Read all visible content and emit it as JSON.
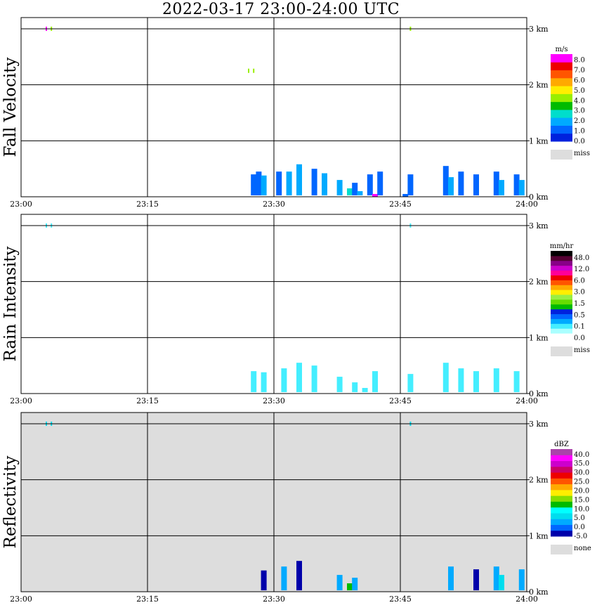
{
  "title": "2022-03-17   23:00-24:00 UTC",
  "x_ticks": [
    "23:00",
    "23:15",
    "23:30",
    "23:45",
    "24:00"
  ],
  "y_ticks": [
    "0 km",
    "1 km",
    "2 km",
    "3 km"
  ],
  "panels": [
    {
      "id": "fall-velocity",
      "ylabel": "Fall Velocity",
      "background": "#ffffff",
      "colorbar": {
        "unit": "m/s",
        "colors": [
          "#0022dd",
          "#0066ff",
          "#00aaff",
          "#00ddcc",
          "#00bb00",
          "#99ee00",
          "#ffee00",
          "#ffaa00",
          "#ff5500",
          "#ee0000",
          "#ff00ff"
        ],
        "labels": [
          "0.0",
          "1.0",
          "2.0",
          "3.0",
          "4.0",
          "5.0",
          "6.0",
          "7.0",
          "8.0"
        ],
        "miss_label": "miss",
        "miss_color": "#dddddd"
      }
    },
    {
      "id": "rain-intensity",
      "ylabel": "Rain Intensity",
      "background": "#ffffff",
      "colorbar": {
        "unit": "mm/hr",
        "colors": [
          "#ffffff",
          "#aaffff",
          "#44eeff",
          "#00aaff",
          "#0066ff",
          "#0022dd",
          "#00bb00",
          "#66dd00",
          "#99ee44",
          "#ffee00",
          "#ffaa00",
          "#ff5500",
          "#ee0000",
          "#ff0099",
          "#cc00cc",
          "#880088",
          "#550033",
          "#000000"
        ],
        "labels": [
          "0.0",
          "0.1",
          "0.5",
          "1.5",
          "3.0",
          "6.0",
          "12.0",
          "48.0"
        ],
        "miss_label": "miss",
        "miss_color": "#dddddd"
      }
    },
    {
      "id": "reflectivity",
      "ylabel": "Reflectivity",
      "background": "#dddddd",
      "colorbar": {
        "unit": "dBZ",
        "colors": [
          "#0000aa",
          "#0066ff",
          "#00aaff",
          "#00ddee",
          "#00ffff",
          "#00bb00",
          "#88dd00",
          "#ffee00",
          "#ffaa00",
          "#ff5500",
          "#ee0000",
          "#cc0066",
          "#cc00cc",
          "#ff00ff",
          "#aa44aa"
        ],
        "labels": [
          "-5.0",
          "0.0",
          "5.0",
          "10.0",
          "15.0",
          "20.0",
          "25.0",
          "30.0",
          "35.0",
          "40.0"
        ],
        "miss_label": "none",
        "miss_color": "#dddddd"
      }
    }
  ],
  "chart_data": [
    {
      "type": "heatmap",
      "title": "2022-03-17   23:00-24:00 UTC",
      "ylabel": "Fall Velocity",
      "xlabel": "",
      "x_range": [
        "23:00",
        "24:00"
      ],
      "y_range_km": [
        0,
        3.2
      ],
      "unit": "m/s",
      "cells": [
        {
          "t": 23.05,
          "h": 3.0,
          "v": 8.0
        },
        {
          "t": 23.06,
          "h": 3.0,
          "v": 4.0
        },
        {
          "t": 23.45,
          "h": 2.25,
          "v": 4.0
        },
        {
          "t": 23.46,
          "h": 2.25,
          "v": 4.0
        },
        {
          "t": 23.77,
          "h": 3.0,
          "v": 4.0
        },
        {
          "t": 23.46,
          "h": 0.4,
          "v": 1.0
        },
        {
          "t": 23.47,
          "h": 0.45,
          "v": 1.0
        },
        {
          "t": 23.48,
          "h": 0.38,
          "v": 1.5
        },
        {
          "t": 23.51,
          "h": 0.45,
          "v": 1.0
        },
        {
          "t": 23.53,
          "h": 0.45,
          "v": 1.5
        },
        {
          "t": 23.55,
          "h": 0.58,
          "v": 1.2
        },
        {
          "t": 23.58,
          "h": 0.5,
          "v": 1.0
        },
        {
          "t": 23.6,
          "h": 0.42,
          "v": 1.5
        },
        {
          "t": 23.63,
          "h": 0.3,
          "v": 1.5
        },
        {
          "t": 23.65,
          "h": 0.15,
          "v": 2.0
        },
        {
          "t": 23.66,
          "h": 0.25,
          "v": 1.0
        },
        {
          "t": 23.67,
          "h": 0.1,
          "v": 1.5
        },
        {
          "t": 23.69,
          "h": 0.4,
          "v": 1.0
        },
        {
          "t": 23.7,
          "h": 0.05,
          "v": 8.0
        },
        {
          "t": 23.71,
          "h": 0.45,
          "v": 1.0
        },
        {
          "t": 23.76,
          "h": 0.05,
          "v": 1.0
        },
        {
          "t": 23.77,
          "h": 0.4,
          "v": 1.0
        },
        {
          "t": 23.84,
          "h": 0.55,
          "v": 1.0
        },
        {
          "t": 23.85,
          "h": 0.35,
          "v": 1.5
        },
        {
          "t": 23.87,
          "h": 0.45,
          "v": 1.0
        },
        {
          "t": 23.9,
          "h": 0.4,
          "v": 1.0
        },
        {
          "t": 23.94,
          "h": 0.45,
          "v": 1.0
        },
        {
          "t": 23.95,
          "h": 0.3,
          "v": 1.5
        },
        {
          "t": 23.98,
          "h": 0.4,
          "v": 1.0
        },
        {
          "t": 23.99,
          "h": 0.3,
          "v": 1.5
        }
      ]
    },
    {
      "type": "heatmap",
      "title": "",
      "ylabel": "Rain Intensity",
      "xlabel": "",
      "x_range": [
        "23:00",
        "24:00"
      ],
      "y_range_km": [
        0,
        3.2
      ],
      "unit": "mm/hr",
      "cells": [
        {
          "t": 23.05,
          "h": 3.0,
          "v": 0.1
        },
        {
          "t": 23.06,
          "h": 3.0,
          "v": 0.1
        },
        {
          "t": 23.77,
          "h": 3.0,
          "v": 0.1
        },
        {
          "t": 23.46,
          "h": 0.4,
          "v": 0.1
        },
        {
          "t": 23.48,
          "h": 0.38,
          "v": 0.1
        },
        {
          "t": 23.52,
          "h": 0.45,
          "v": 0.1
        },
        {
          "t": 23.55,
          "h": 0.55,
          "v": 0.1
        },
        {
          "t": 23.58,
          "h": 0.5,
          "v": 0.1
        },
        {
          "t": 23.63,
          "h": 0.3,
          "v": 0.1
        },
        {
          "t": 23.66,
          "h": 0.2,
          "v": 0.1
        },
        {
          "t": 23.68,
          "h": 0.1,
          "v": 0.1
        },
        {
          "t": 23.7,
          "h": 0.4,
          "v": 0.1
        },
        {
          "t": 23.77,
          "h": 0.35,
          "v": 0.1
        },
        {
          "t": 23.84,
          "h": 0.55,
          "v": 0.1
        },
        {
          "t": 23.87,
          "h": 0.45,
          "v": 0.1
        },
        {
          "t": 23.9,
          "h": 0.4,
          "v": 0.1
        },
        {
          "t": 23.94,
          "h": 0.45,
          "v": 0.1
        },
        {
          "t": 23.98,
          "h": 0.4,
          "v": 0.1
        }
      ]
    },
    {
      "type": "heatmap",
      "title": "",
      "ylabel": "Reflectivity",
      "xlabel": "",
      "x_range": [
        "23:00",
        "24:00"
      ],
      "y_range_km": [
        0,
        3.2
      ],
      "unit": "dBZ",
      "cells": [
        {
          "t": 23.05,
          "h": 3.0,
          "v": 5.0
        },
        {
          "t": 23.06,
          "h": 3.0,
          "v": 5.0
        },
        {
          "t": 23.77,
          "h": 3.0,
          "v": 5.0
        },
        {
          "t": 23.48,
          "h": 0.38,
          "v": -5.0
        },
        {
          "t": 23.52,
          "h": 0.45,
          "v": 0.0
        },
        {
          "t": 23.55,
          "h": 0.55,
          "v": -5.0
        },
        {
          "t": 23.63,
          "h": 0.3,
          "v": 0.0
        },
        {
          "t": 23.65,
          "h": 0.15,
          "v": 10.0
        },
        {
          "t": 23.66,
          "h": 0.25,
          "v": 0.0
        },
        {
          "t": 23.85,
          "h": 0.45,
          "v": 0.0
        },
        {
          "t": 23.9,
          "h": 0.4,
          "v": -5.0
        },
        {
          "t": 23.94,
          "h": 0.45,
          "v": 0.0
        },
        {
          "t": 23.95,
          "h": 0.3,
          "v": 5.0
        },
        {
          "t": 23.99,
          "h": 0.4,
          "v": 0.0
        }
      ]
    }
  ]
}
